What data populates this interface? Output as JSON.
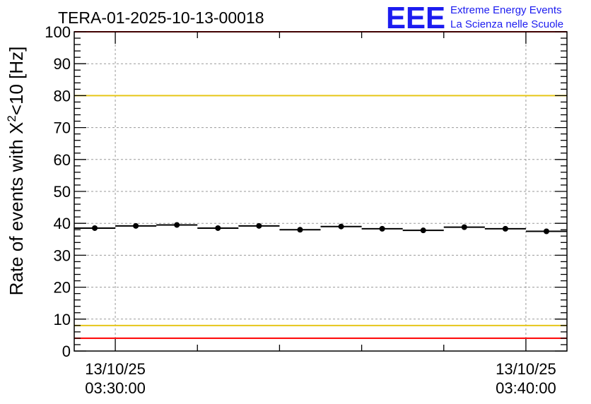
{
  "header": {
    "title": "TERA-01-2025-10-13-00018",
    "logo_text": "EEE",
    "logo_line1": "Extreme Energy Events",
    "logo_line2": "La Scienza nelle Scuole"
  },
  "chart_data": {
    "type": "scatter",
    "title": "TERA-01-2025-10-13-00018",
    "ylabel_prefix": "Rate of events with X",
    "ylabel_sup": "2",
    "ylabel_suffix": "<10 [Hz]",
    "ylim": [
      0,
      100
    ],
    "yticks": [
      0,
      10,
      20,
      30,
      40,
      50,
      60,
      70,
      80,
      90,
      100
    ],
    "x_tick_labels": [
      {
        "date": "13/10/25",
        "time": "03:30:00"
      },
      {
        "date": "13/10/25",
        "time": "03:40:00"
      }
    ],
    "x_unit": "minutes",
    "xlim": [
      -1,
      11
    ],
    "x_major_ticks": [
      0,
      10
    ],
    "x_minor_ticks": [
      2,
      4,
      6,
      8
    ],
    "grid": true,
    "series": [
      {
        "x": [
          -0.5,
          0.5,
          1.5,
          2.5,
          3.5,
          4.5,
          5.5,
          6.5,
          7.5,
          8.5,
          9.5,
          10.5
        ],
        "values": [
          38.5,
          39.2,
          39.5,
          38.5,
          39.2,
          38.0,
          39.0,
          38.3,
          37.8,
          38.8,
          38.3,
          37.5
        ],
        "bin_width": 1.0,
        "color": "#000000"
      }
    ],
    "reference_lines": [
      {
        "y": 100,
        "color": "#ff0000"
      },
      {
        "y": 80,
        "color": "#e6c619"
      },
      {
        "y": 8,
        "color": "#e6c619"
      },
      {
        "y": 4,
        "color": "#ff0000"
      }
    ]
  }
}
